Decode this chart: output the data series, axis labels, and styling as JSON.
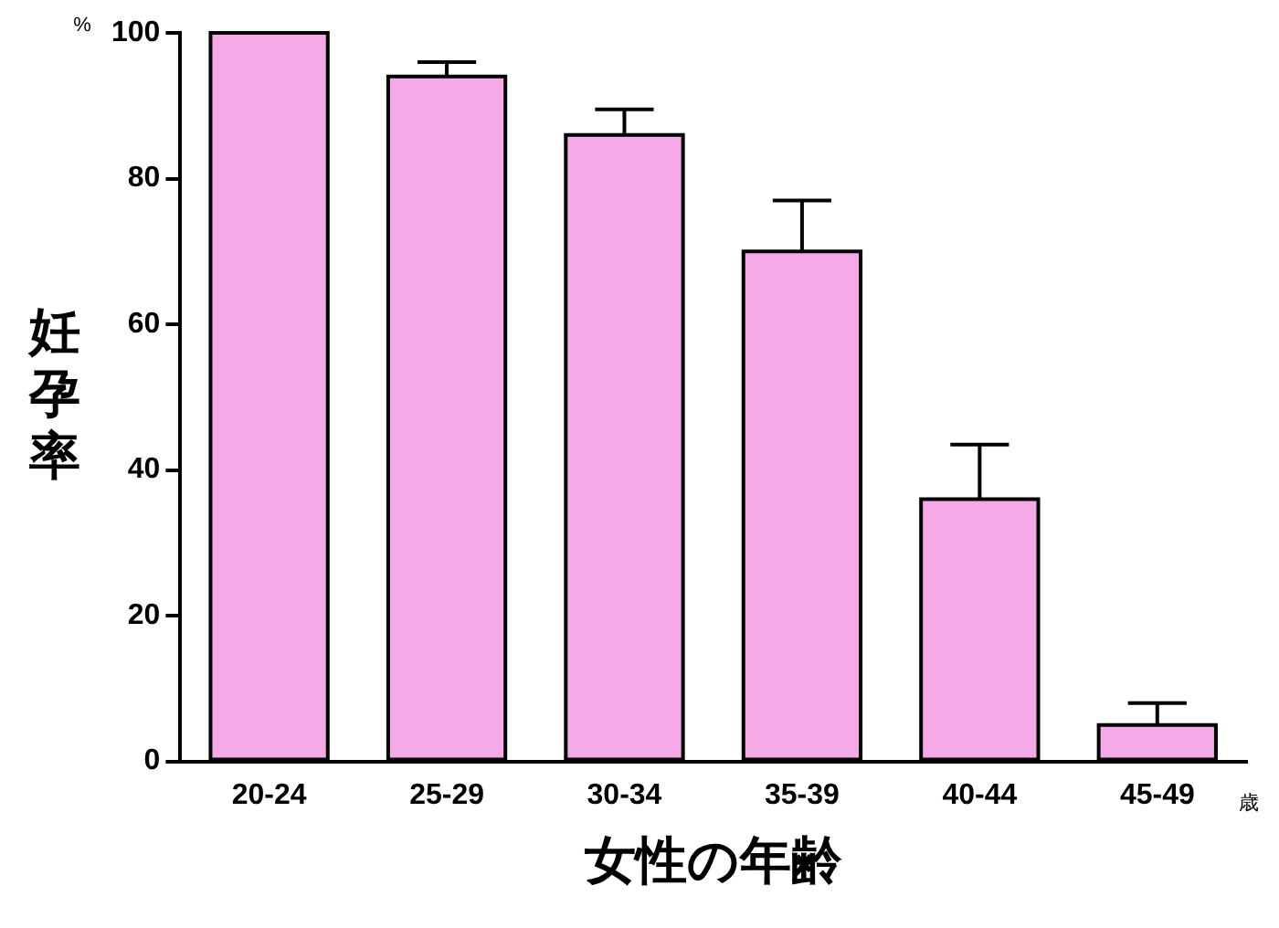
{
  "chart_data": {
    "type": "bar",
    "categories": [
      "20-24",
      "25-29",
      "30-34",
      "35-39",
      "40-44",
      "45-49"
    ],
    "values": [
      100,
      94,
      86,
      70,
      36,
      5
    ],
    "errors": [
      null,
      [
        94,
        96
      ],
      [
        86,
        89.5
      ],
      [
        70,
        77
      ],
      [
        36,
        43.5
      ],
      [
        5,
        8
      ]
    ],
    "color": "#f5a9e6",
    "xlabel": "女性の年齢",
    "ylabel": "妊孕率",
    "annotations": [
      "%",
      "歳"
    ],
    "ylim": [
      0,
      100
    ],
    "yticks": [
      0,
      20,
      40,
      60,
      80,
      100
    ],
    "grid": false,
    "legend": false
  }
}
